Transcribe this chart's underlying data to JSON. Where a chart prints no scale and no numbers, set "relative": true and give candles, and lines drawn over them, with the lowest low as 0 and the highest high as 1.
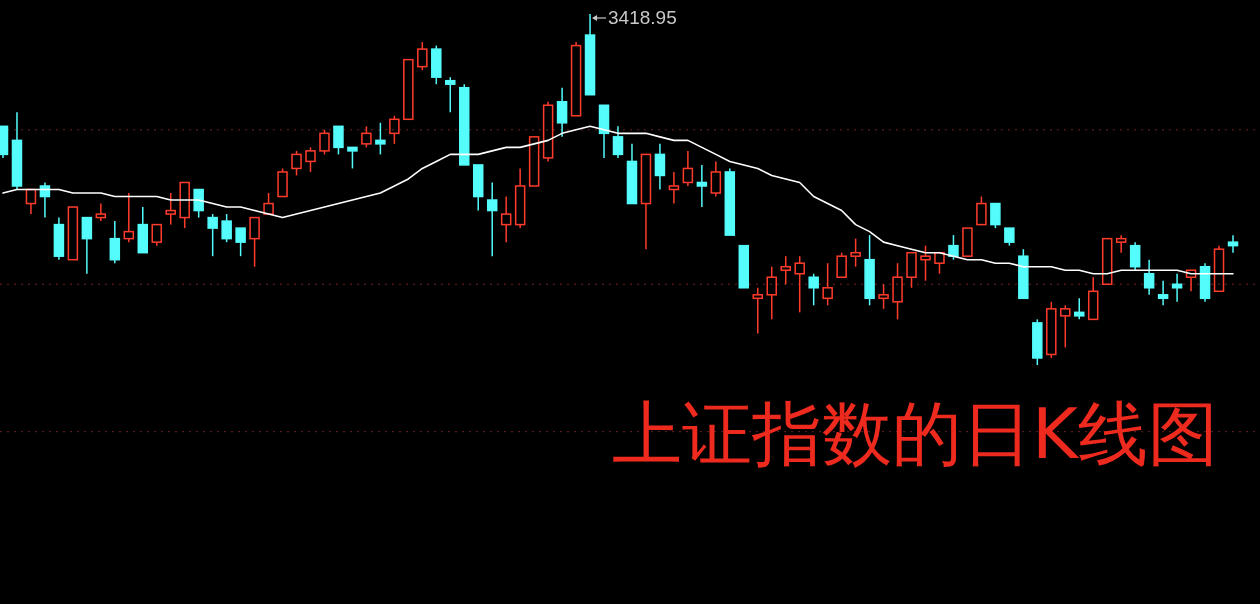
{
  "chart_data": {
    "type": "candlestick",
    "relative": true,
    "title": "上证指数的日K线图",
    "annotations": [
      "3418.95"
    ],
    "categories": [
      null,
      null,
      null,
      null,
      null,
      null,
      null,
      null,
      null,
      null,
      null,
      null,
      null,
      null,
      null,
      null,
      null,
      null,
      null,
      null,
      null,
      null,
      null,
      null,
      null,
      null,
      null,
      null,
      null,
      null,
      null,
      null,
      null,
      null,
      null,
      null,
      null,
      null,
      null,
      null,
      null,
      null,
      null,
      null,
      null,
      null,
      null,
      null,
      null,
      null,
      null,
      null,
      null,
      null,
      null,
      null,
      null,
      null,
      null,
      null,
      null,
      null,
      null,
      null,
      null,
      null,
      null,
      null,
      null,
      null,
      null,
      null,
      null,
      null,
      null,
      null,
      null,
      null,
      null,
      null,
      null,
      null,
      null,
      null,
      null,
      null,
      null,
      null,
      null
    ],
    "ohlc": [
      [
        0.68,
        0.68,
        0.59,
        0.6
      ],
      [
        0.64,
        0.72,
        0.5,
        0.51
      ],
      [
        0.46,
        0.5,
        0.43,
        0.5
      ],
      [
        0.51,
        0.52,
        0.42,
        0.48
      ],
      [
        0.4,
        0.42,
        0.3,
        0.31
      ],
      [
        0.3,
        0.45,
        0.3,
        0.45
      ],
      [
        0.42,
        0.42,
        0.26,
        0.36
      ],
      [
        0.42,
        0.46,
        0.41,
        0.43
      ],
      [
        0.36,
        0.41,
        0.29,
        0.3
      ],
      [
        0.36,
        0.49,
        0.35,
        0.38
      ],
      [
        0.4,
        0.45,
        0.32,
        0.32
      ],
      [
        0.35,
        0.4,
        0.34,
        0.4
      ],
      [
        0.43,
        0.49,
        0.4,
        0.44
      ],
      [
        0.42,
        0.52,
        0.39,
        0.52
      ],
      [
        0.5,
        0.5,
        0.42,
        0.44
      ],
      [
        0.42,
        0.43,
        0.31,
        0.39
      ],
      [
        0.41,
        0.43,
        0.35,
        0.36
      ],
      [
        0.39,
        0.39,
        0.31,
        0.35
      ],
      [
        0.36,
        0.42,
        0.28,
        0.42
      ],
      [
        0.43,
        0.49,
        0.43,
        0.46
      ],
      [
        0.48,
        0.56,
        0.48,
        0.55
      ],
      [
        0.56,
        0.61,
        0.54,
        0.6
      ],
      [
        0.58,
        0.62,
        0.55,
        0.61
      ],
      [
        0.61,
        0.67,
        0.6,
        0.66
      ],
      [
        0.68,
        0.68,
        0.6,
        0.62
      ],
      [
        0.62,
        0.62,
        0.56,
        0.61
      ],
      [
        0.63,
        0.68,
        0.62,
        0.66
      ],
      [
        0.64,
        0.69,
        0.6,
        0.63
      ],
      [
        0.66,
        0.71,
        0.63,
        0.7
      ],
      [
        0.7,
        0.87,
        0.7,
        0.87
      ],
      [
        0.85,
        0.92,
        0.84,
        0.9
      ],
      [
        0.9,
        0.91,
        0.8,
        0.82
      ],
      [
        0.81,
        0.82,
        0.72,
        0.8
      ],
      [
        0.79,
        0.8,
        0.57,
        0.57
      ],
      [
        0.57,
        0.57,
        0.44,
        0.48
      ],
      [
        0.47,
        0.52,
        0.31,
        0.44
      ],
      [
        0.4,
        0.48,
        0.35,
        0.43
      ],
      [
        0.4,
        0.56,
        0.39,
        0.51
      ],
      [
        0.51,
        0.65,
        0.51,
        0.65
      ],
      [
        0.59,
        0.75,
        0.58,
        0.74
      ],
      [
        0.75,
        0.79,
        0.65,
        0.69
      ],
      [
        0.71,
        0.92,
        0.71,
        0.91
      ],
      [
        0.94,
        1,
        0.77,
        0.77
      ],
      [
        0.74,
        0.74,
        0.59,
        0.66
      ],
      [
        0.65,
        0.68,
        0.59,
        0.6
      ],
      [
        0.58,
        0.63,
        0.46,
        0.46
      ],
      [
        0.46,
        0.6,
        0.33,
        0.6
      ],
      [
        0.6,
        0.63,
        0.5,
        0.54
      ],
      [
        0.5,
        0.55,
        0.46,
        0.51
      ],
      [
        0.52,
        0.61,
        0.51,
        0.56
      ],
      [
        0.52,
        0.57,
        0.45,
        0.51
      ],
      [
        0.49,
        0.58,
        0.48,
        0.55
      ],
      [
        0.55,
        0.56,
        0.37,
        0.37
      ],
      [
        0.34,
        0.34,
        0.22,
        0.22
      ],
      [
        0.19,
        0.22,
        0.09,
        0.2
      ],
      [
        0.2,
        0.28,
        0.13,
        0.25
      ],
      [
        0.27,
        0.31,
        0.23,
        0.28
      ],
      [
        0.26,
        0.31,
        0.15,
        0.29
      ],
      [
        0.25,
        0.26,
        0.17,
        0.22
      ],
      [
        0.19,
        0.29,
        0.17,
        0.22
      ],
      [
        0.25,
        0.32,
        0.25,
        0.31
      ],
      [
        0.31,
        0.36,
        0.28,
        0.32
      ],
      [
        0.3,
        0.37,
        0.17,
        0.19
      ],
      [
        0.19,
        0.23,
        0.16,
        0.2
      ],
      [
        0.18,
        0.29,
        0.13,
        0.25
      ],
      [
        0.25,
        0.32,
        0.22,
        0.32
      ],
      [
        0.3,
        0.34,
        0.24,
        0.31
      ],
      [
        0.29,
        0.32,
        0.26,
        0.32
      ],
      [
        0.34,
        0.37,
        0.3,
        0.31
      ],
      [
        0.31,
        0.39,
        0.31,
        0.39
      ],
      [
        0.4,
        0.48,
        0.4,
        0.46
      ],
      [
        0.46,
        0.46,
        0.39,
        0.4
      ],
      [
        0.39,
        0.39,
        0.34,
        0.35
      ],
      [
        0.31,
        0.33,
        0.19,
        0.19
      ],
      [
        0.12,
        0.13,
        0,
        0.02
      ],
      [
        0.03,
        0.18,
        0.02,
        0.16
      ],
      [
        0.14,
        0.17,
        0.05,
        0.16
      ],
      [
        0.15,
        0.19,
        0.13,
        0.14
      ],
      [
        0.13,
        0.25,
        0.13,
        0.21
      ],
      [
        0.23,
        0.36,
        0.23,
        0.36
      ],
      [
        0.35,
        0.37,
        0.32,
        0.36
      ],
      [
        0.34,
        0.35,
        0.27,
        0.28
      ],
      [
        0.26,
        0.3,
        0.2,
        0.22
      ],
      [
        0.2,
        0.24,
        0.17,
        0.19
      ],
      [
        0.23,
        0.26,
        0.18,
        0.22
      ],
      [
        0.25,
        0.27,
        0.21,
        0.27
      ],
      [
        0.28,
        0.29,
        0.18,
        0.19
      ],
      [
        0.21,
        0.34,
        0.21,
        0.33
      ],
      [
        0.35,
        0.37,
        0.32,
        0.34
      ]
    ],
    "colors": [
      "#54fcfc",
      "#54fcfc",
      "#ff3c2c",
      "#54fcfc",
      "#54fcfc",
      "#ff3c2c",
      "#54fcfc",
      "#ff3c2c",
      "#54fcfc",
      "#ff3c2c",
      "#54fcfc",
      "#ff3c2c",
      "#ff3c2c",
      "#ff3c2c",
      "#54fcfc",
      "#54fcfc",
      "#54fcfc",
      "#54fcfc",
      "#ff3c2c",
      "#ff3c2c",
      "#ff3c2c",
      "#ff3c2c",
      "#ff3c2c",
      "#ff3c2c",
      "#54fcfc",
      "#54fcfc",
      "#ff3c2c",
      "#54fcfc",
      "#ff3c2c",
      "#ff3c2c",
      "#ff3c2c",
      "#54fcfc",
      "#54fcfc",
      "#54fcfc",
      "#54fcfc",
      "#54fcfc",
      "#ff3c2c",
      "#ff3c2c",
      "#ff3c2c",
      "#ff3c2c",
      "#54fcfc",
      "#ff3c2c",
      "#54fcfc",
      "#54fcfc",
      "#54fcfc",
      "#54fcfc",
      "#ff3c2c",
      "#54fcfc",
      "#ff3c2c",
      "#ff3c2c",
      "#54fcfc",
      "#ff3c2c",
      "#54fcfc",
      "#54fcfc",
      "#ff3c2c",
      "#ff3c2c",
      "#ff3c2c",
      "#ff3c2c",
      "#54fcfc",
      "#ff3c2c",
      "#ff3c2c",
      "#ff3c2c",
      "#54fcfc",
      "#ff3c2c",
      "#ff3c2c",
      "#ff3c2c",
      "#ff3c2c",
      "#ff3c2c",
      "#54fcfc",
      "#ff3c2c",
      "#ff3c2c",
      "#54fcfc",
      "#54fcfc",
      "#54fcfc",
      "#54fcfc",
      "#ff3c2c",
      "#ff3c2c",
      "#54fcfc",
      "#ff3c2c",
      "#ff3c2c",
      "#ff3c2c",
      "#54fcfc",
      "#54fcfc",
      "#54fcfc",
      "#54fcfc",
      "#ff3c2c",
      "#54fcfc",
      "#ff3c2c",
      "#54fcfc"
    ],
    "series": [
      {
        "type": "line",
        "color": "#ffffff",
        "values": [
          0.49,
          0.5,
          0.5,
          0.5,
          0.5,
          0.49,
          0.49,
          0.49,
          0.48,
          0.48,
          0.48,
          0.48,
          0.47,
          0.47,
          0.47,
          0.46,
          0.45,
          0.45,
          0.44,
          0.43,
          0.42,
          0.43,
          0.44,
          0.45,
          0.46,
          0.47,
          0.48,
          0.49,
          0.51,
          0.53,
          0.56,
          0.58,
          0.6,
          0.6,
          0.6,
          0.61,
          0.62,
          0.62,
          0.63,
          0.64,
          0.66,
          0.67,
          0.68,
          0.67,
          0.66,
          0.66,
          0.66,
          0.65,
          0.64,
          0.64,
          0.62,
          0.6,
          0.58,
          0.57,
          0.56,
          0.54,
          0.53,
          0.52,
          0.48,
          0.46,
          0.44,
          0.4,
          0.38,
          0.35,
          0.34,
          0.33,
          0.32,
          0.32,
          0.31,
          0.3,
          0.3,
          0.29,
          0.29,
          0.28,
          0.28,
          0.28,
          0.27,
          0.27,
          0.26,
          0.26,
          0.27,
          0.27,
          0.27,
          0.27,
          0.27,
          0.26,
          0.26,
          0.26,
          0.26
        ]
      }
    ],
    "ref_lines": [
      {
        "axis": "y",
        "value": 0.67,
        "color": "#6e2323",
        "line_style": "dotted"
      },
      {
        "axis": "y",
        "value": 0.23,
        "color": "#6e2323",
        "line_style": "dotted"
      },
      {
        "axis": "y",
        "value": -0.19,
        "color": "#6e2323",
        "line_style": "dotted"
      }
    ]
  }
}
